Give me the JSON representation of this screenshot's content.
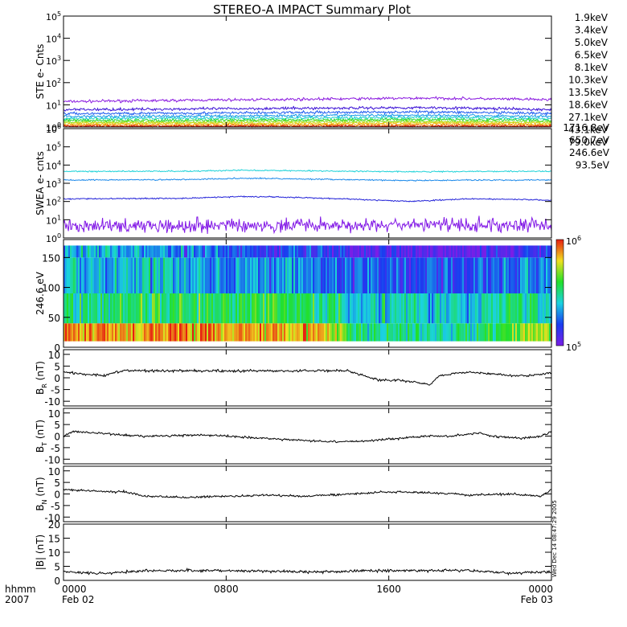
{
  "title": "STEREO-A IMPACT Summary Plot",
  "side_text": "Wed Dec 14 08:47:29 2005",
  "time_axis": {
    "corner_labels": [
      "hhmm",
      "2007"
    ],
    "ticks": [
      {
        "value": "0000",
        "date": "Feb 02"
      },
      {
        "value": "0800",
        "date": ""
      },
      {
        "value": "1600",
        "date": ""
      },
      {
        "value": "0000",
        "date": "Feb 03"
      }
    ],
    "range_hours": [
      0,
      24
    ]
  },
  "colors": {
    "ste": [
      "#8c1de0",
      "#3c12d6",
      "#1f5cf0",
      "#1a9be8",
      "#1fd0d0",
      "#2ad830",
      "#86e020",
      "#d8d820",
      "#f5b316",
      "#e86c12",
      "#d81e12"
    ],
    "swea": [
      "#8218e6",
      "#2222d8",
      "#1a88ea",
      "#1ed2d8"
    ]
  },
  "chart_data": [
    {
      "type": "line",
      "id": "ste",
      "ylabel": "STE e- Cnts",
      "yscale": "log",
      "ylim": [
        1,
        100000
      ],
      "yticks": [
        {
          "b": "10",
          "e": "0"
        },
        {
          "b": "10",
          "e": "1"
        },
        {
          "b": "10",
          "e": "2"
        },
        {
          "b": "10",
          "e": "3"
        },
        {
          "b": "10",
          "e": "4"
        },
        {
          "b": "10",
          "e": "5"
        }
      ],
      "series": [
        {
          "name": "1.9keV",
          "values_hours": [
            0,
            6,
            12,
            18,
            24
          ],
          "values": [
            14,
            16,
            18,
            20,
            17
          ]
        },
        {
          "name": "3.4keV",
          "values_hours": [
            0,
            6,
            12,
            18,
            24
          ],
          "values": [
            6,
            6.5,
            7,
            7.5,
            6
          ]
        },
        {
          "name": "5.0keV",
          "values_hours": [
            0,
            6,
            12,
            18,
            24
          ],
          "values": [
            4,
            4.2,
            4.5,
            4.8,
            4
          ]
        },
        {
          "name": "6.5keV",
          "values_hours": [
            0,
            6,
            12,
            18,
            24
          ],
          "values": [
            3,
            3.1,
            3.3,
            3.4,
            3
          ]
        },
        {
          "name": "8.1keV",
          "values_hours": [
            0,
            6,
            12,
            18,
            24
          ],
          "values": [
            2.4,
            2.5,
            2.6,
            2.7,
            2.4
          ]
        },
        {
          "name": "10.3keV",
          "values_hours": [
            0,
            6,
            12,
            18,
            24
          ],
          "values": [
            2.0,
            2.0,
            2.1,
            2.2,
            2.0
          ]
        },
        {
          "name": "13.5keV",
          "values_hours": [
            0,
            6,
            12,
            18,
            24
          ],
          "values": [
            1.7,
            1.7,
            1.8,
            1.8,
            1.7
          ]
        },
        {
          "name": "18.6keV",
          "values_hours": [
            0,
            6,
            12,
            18,
            24
          ],
          "values": [
            1.5,
            1.5,
            1.5,
            1.6,
            1.5
          ]
        },
        {
          "name": "27.1keV",
          "values_hours": [
            0,
            6,
            12,
            18,
            24
          ],
          "values": [
            1.3,
            1.3,
            1.3,
            1.4,
            1.3
          ]
        },
        {
          "name": "43.1keV",
          "values_hours": [
            0,
            6,
            12,
            18,
            24
          ],
          "values": [
            1.15,
            1.15,
            1.15,
            1.2,
            1.15
          ]
        },
        {
          "name": "79.0keV",
          "values_hours": [
            0,
            6,
            12,
            18,
            24
          ],
          "values": [
            1.05,
            1.05,
            1.05,
            1.05,
            1.05
          ]
        }
      ]
    },
    {
      "type": "line",
      "id": "swea",
      "ylabel": "SWEA e- cnts",
      "yscale": "log",
      "ylim": [
        1,
        1000000
      ],
      "yticks": [
        {
          "b": "10",
          "e": "0"
        },
        {
          "b": "10",
          "e": "1"
        },
        {
          "b": "10",
          "e": "2"
        },
        {
          "b": "10",
          "e": "3"
        },
        {
          "b": "10",
          "e": "4"
        },
        {
          "b": "10",
          "e": "5"
        },
        {
          "b": "10",
          "e": "6"
        }
      ],
      "series": [
        {
          "name": "1716.8eV",
          "values_hours": [
            0,
            6,
            12,
            18,
            24
          ],
          "values": [
            5,
            5,
            5,
            5,
            5
          ]
        },
        {
          "name": "650.7eV",
          "values_hours": [
            0,
            6,
            9,
            12,
            17,
            20,
            24
          ],
          "values": [
            140,
            150,
            190,
            160,
            100,
            140,
            120
          ]
        },
        {
          "name": "246.6eV",
          "values_hours": [
            0,
            6,
            9,
            12,
            17,
            20,
            24
          ],
          "values": [
            1500,
            1600,
            1900,
            1700,
            1400,
            1500,
            1500
          ]
        },
        {
          "name": "93.5eV",
          "values_hours": [
            0,
            6,
            9,
            12,
            17,
            20,
            24
          ],
          "values": [
            4500,
            4600,
            5200,
            4800,
            4300,
            4500,
            4500
          ]
        }
      ]
    },
    {
      "type": "heatmap",
      "id": "pad",
      "ylabel": "246.6 eV",
      "ylim": [
        0,
        180
      ],
      "yticks": [
        "0",
        "50",
        "100",
        "150"
      ],
      "colorbar": {
        "scale": "log",
        "range": [
          100000,
          1000000
        ],
        "labels": [
          {
            "b": "10",
            "e": "6",
            "value": 1000000
          },
          {
            "b": "10",
            "e": "5",
            "value": 100000
          }
        ]
      },
      "bands": [
        {
          "hours": [
            0,
            5.5,
            11,
            13,
            14.5,
            20,
            24
          ],
          "from_deg": 10,
          "to_deg": 40,
          "values": [
            700000,
            750000,
            700000,
            650000,
            320000,
            280000,
            560000
          ]
        },
        {
          "hours": [
            0,
            5.5,
            11,
            13,
            14.5,
            20,
            24
          ],
          "from_deg": 40,
          "to_deg": 90,
          "values": [
            300000,
            380000,
            350000,
            330000,
            260000,
            250000,
            320000
          ]
        },
        {
          "hours": [
            0,
            5.5,
            11,
            13,
            14.5,
            20,
            24
          ],
          "from_deg": 90,
          "to_deg": 150,
          "values": [
            250000,
            230000,
            200000,
            190000,
            170000,
            160000,
            200000
          ]
        },
        {
          "hours": [
            0,
            5.5,
            11,
            13,
            14.5,
            20,
            24
          ],
          "from_deg": 150,
          "to_deg": 170,
          "values": [
            230000,
            200000,
            150000,
            140000,
            120000,
            110000,
            150000
          ]
        }
      ]
    },
    {
      "type": "line",
      "id": "br",
      "ylabel": {
        "base": "B",
        "sub": "R",
        "unit": " (nT)"
      },
      "ylim": [
        -12,
        12
      ],
      "yticks": [
        "-10",
        "-5",
        "0",
        "5",
        "10"
      ],
      "series": [
        {
          "values_hours": [
            0,
            1,
            2,
            2.5,
            3,
            6,
            10,
            14,
            14.8,
            15.5,
            16.5,
            17.5,
            18,
            18.5,
            20,
            22,
            23,
            24
          ],
          "values": [
            2.5,
            1.5,
            1,
            2.5,
            3,
            3,
            3,
            3,
            1,
            -1,
            -1,
            -2,
            -3,
            1,
            2.5,
            1,
            1,
            2
          ]
        }
      ]
    },
    {
      "type": "line",
      "id": "bt",
      "ylabel": {
        "base": "B",
        "sub": "T",
        "unit": " (nT)"
      },
      "ylim": [
        -12,
        12
      ],
      "yticks": [
        "-10",
        "-5",
        "0",
        "5",
        "10"
      ],
      "series": [
        {
          "values_hours": [
            0,
            0.5,
            2,
            4,
            7,
            10,
            12,
            13.5,
            15,
            16.5,
            18,
            19,
            20.5,
            21,
            22.5,
            23.5,
            24
          ],
          "values": [
            0,
            2,
            1,
            0,
            0.5,
            -1,
            -2,
            -2.5,
            -2,
            -1,
            0,
            0,
            1.5,
            0,
            -1,
            0,
            2
          ]
        }
      ]
    },
    {
      "type": "line",
      "id": "bn",
      "ylabel": {
        "base": "B",
        "sub": "N",
        "unit": " (nT)"
      },
      "ylim": [
        -12,
        12
      ],
      "yticks": [
        "-10",
        "-5",
        "0",
        "5",
        "10"
      ],
      "series": [
        {
          "values_hours": [
            0,
            2,
            3,
            4,
            6,
            8,
            10,
            12,
            14,
            16,
            18,
            20,
            22,
            23.5,
            24
          ],
          "values": [
            2,
            1,
            1,
            -1,
            -1.5,
            -1,
            -0.5,
            -1,
            0,
            1,
            0.5,
            -0.5,
            0,
            -1,
            2
          ]
        }
      ]
    },
    {
      "type": "line",
      "id": "bmag",
      "ylabel": "|B| (nT)",
      "ylim": [
        0,
        20
      ],
      "yticks": [
        "0",
        "5",
        "10",
        "15",
        "20"
      ],
      "series": [
        {
          "values_hours": [
            0,
            2,
            4,
            8,
            12,
            16,
            20,
            22,
            24
          ],
          "values": [
            3,
            2.5,
            3.5,
            3.5,
            3,
            3.5,
            3.5,
            2.5,
            3
          ]
        }
      ]
    }
  ]
}
